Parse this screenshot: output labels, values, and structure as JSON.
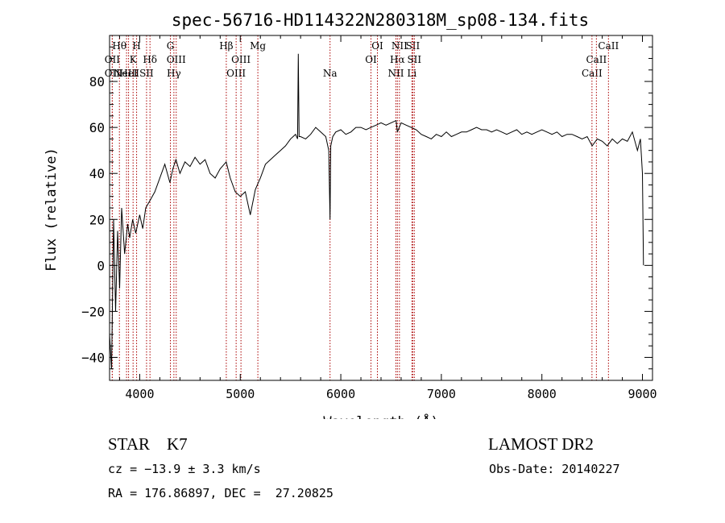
{
  "chart_data": {
    "type": "line",
    "title": "spec-56716-HD114322N280318M_sp08-134.fits",
    "xlabel": "Wavelength (Å)",
    "ylabel": "Flux (relative)",
    "xlim": [
      3700,
      9100
    ],
    "ylim": [
      -50,
      100
    ],
    "xticks": [
      4000,
      5000,
      6000,
      7000,
      8000,
      9000
    ],
    "xtick_labels": [
      "4000",
      "5000",
      "6000",
      "7000",
      "8000",
      "9000"
    ],
    "yticks": [
      -40,
      -20,
      0,
      20,
      40,
      60,
      80
    ],
    "ytick_labels": [
      "−40",
      "−20",
      "0",
      "20",
      "40",
      "60",
      "80"
    ],
    "grid": false,
    "legend": "none",
    "line_color": "#000000",
    "marker_color": "#aa0000",
    "series": [
      {
        "x": [
          3700,
          3720,
          3740,
          3760,
          3780,
          3800,
          3820,
          3850,
          3880,
          3900,
          3930,
          3960,
          4000,
          4030,
          4060,
          4100,
          4150,
          4200,
          4250,
          4300,
          4330,
          4360,
          4400,
          4450,
          4500,
          4550,
          4600,
          4650,
          4700,
          4750,
          4800,
          4860,
          4900,
          4950,
          5000,
          5050,
          5100,
          5150,
          5180,
          5200,
          5250,
          5300,
          5350,
          5400,
          5450,
          5500,
          5550,
          5570,
          5577,
          5585,
          5600,
          5650,
          5700,
          5750,
          5800,
          5850,
          5880,
          5893,
          5900,
          5920,
          5950,
          6000,
          6050,
          6100,
          6150,
          6200,
          6250,
          6300,
          6350,
          6400,
          6450,
          6500,
          6550,
          6563,
          6600,
          6650,
          6700,
          6750,
          6800,
          6850,
          6900,
          6950,
          7000,
          7050,
          7100,
          7150,
          7200,
          7250,
          7300,
          7350,
          7400,
          7450,
          7500,
          7550,
          7600,
          7650,
          7700,
          7750,
          7800,
          7850,
          7900,
          7950,
          8000,
          8050,
          8100,
          8150,
          8200,
          8250,
          8300,
          8350,
          8400,
          8450,
          8500,
          8550,
          8600,
          8650,
          8700,
          8750,
          8800,
          8850,
          8900,
          8950,
          8980,
          9000,
          9010
        ],
        "y": [
          -30,
          -45,
          20,
          -20,
          15,
          -10,
          25,
          5,
          18,
          12,
          20,
          14,
          22,
          16,
          25,
          28,
          32,
          38,
          44,
          36,
          42,
          46,
          40,
          45,
          43,
          47,
          44,
          46,
          40,
          38,
          42,
          45,
          38,
          32,
          30,
          32,
          22,
          33,
          36,
          38,
          44,
          46,
          48,
          50,
          52,
          55,
          57,
          55,
          92,
          56,
          56,
          55,
          57,
          60,
          58,
          56,
          50,
          20,
          52,
          56,
          58,
          59,
          57,
          58,
          60,
          60,
          59,
          60,
          61,
          62,
          61,
          62,
          63,
          58,
          62,
          61,
          60,
          59,
          57,
          56,
          55,
          57,
          56,
          58,
          56,
          57,
          58,
          58,
          59,
          60,
          59,
          59,
          58,
          59,
          58,
          57,
          58,
          59,
          57,
          58,
          57,
          58,
          59,
          58,
          57,
          58,
          56,
          57,
          57,
          56,
          55,
          56,
          52,
          55,
          54,
          52,
          55,
          53,
          55,
          54,
          58,
          50,
          55,
          40,
          0
        ]
      }
    ],
    "line_markers": [
      {
        "x": 3798,
        "row": 1,
        "label": "Hθ"
      },
      {
        "x": 3727,
        "row": 2,
        "label": "OII"
      },
      {
        "x": 3727,
        "row": 3,
        "label": "OII"
      },
      {
        "x": 3869,
        "row": 3,
        "label": "NeIII"
      },
      {
        "x": 3889,
        "row": 3,
        "label": "HeI"
      },
      {
        "x": 3934,
        "row": 2,
        "label": "K"
      },
      {
        "x": 3969,
        "row": 1,
        "label": "H"
      },
      {
        "x": 4068,
        "row": 3,
        "label": "SII"
      },
      {
        "x": 4102,
        "row": 2,
        "label": "Hδ"
      },
      {
        "x": 4305,
        "row": 1,
        "label": "G"
      },
      {
        "x": 4340,
        "row": 3,
        "label": "Hγ"
      },
      {
        "x": 4363,
        "row": 2,
        "label": "OIII"
      },
      {
        "x": 4861,
        "row": 1,
        "label": "Hβ"
      },
      {
        "x": 4959,
        "row": 3,
        "label": "OIII"
      },
      {
        "x": 5007,
        "row": 2,
        "label": "OIII"
      },
      {
        "x": 5175,
        "row": 1,
        "label": "Mg"
      },
      {
        "x": 5893,
        "row": 3,
        "label": "Na"
      },
      {
        "x": 6300,
        "row": 2,
        "label": "OI"
      },
      {
        "x": 6364,
        "row": 1,
        "label": "OI"
      },
      {
        "x": 6548,
        "row": 3,
        "label": "NII"
      },
      {
        "x": 6563,
        "row": 2,
        "label": "Hα"
      },
      {
        "x": 6583,
        "row": 1,
        "label": "NII"
      },
      {
        "x": 6707,
        "row": 3,
        "label": "Li"
      },
      {
        "x": 6716,
        "row": 1,
        "label": "SII"
      },
      {
        "x": 6731,
        "row": 2,
        "label": "SII"
      },
      {
        "x": 8498,
        "row": 3,
        "label": "CaII"
      },
      {
        "x": 8542,
        "row": 2,
        "label": "CaII"
      },
      {
        "x": 8662,
        "row": 1,
        "label": "CaII"
      }
    ]
  },
  "info": {
    "class_line": "STAR    K7",
    "survey": "LAMOST DR2",
    "cz": "cz = −13.9 ± 3.3 km/s",
    "obs_date": "Obs-Date: 20140227",
    "coords": "RA = 176.86897, DEC =  27.20825"
  }
}
